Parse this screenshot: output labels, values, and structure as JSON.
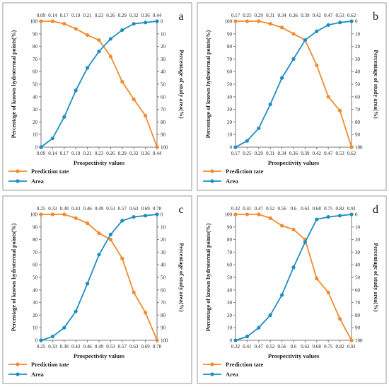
{
  "figure": {
    "series_colors": {
      "prediction": "#F28A2E",
      "area": "#1F8DC4"
    },
    "frame_color": "#9a9a9a"
  },
  "chart_data": [
    {
      "panel_label": "a",
      "type": "line",
      "xlabel": "Prospectivity values",
      "ylabel": "Percentage of known hydrotermal points(%)",
      "y2label": "Percentage of study area(%)",
      "x_ticks": [
        "0.09",
        "0.14",
        "0.17",
        "0.19",
        "0.21",
        "0.23",
        "0.26",
        "0.29",
        "0.32",
        "0.36",
        "0.44"
      ],
      "y_ticks": [
        0,
        10,
        20,
        30,
        40,
        50,
        60,
        70,
        80,
        90,
        100
      ],
      "y2_ticks": [
        100,
        90,
        80,
        70,
        60,
        50,
        40,
        30,
        20,
        10,
        0
      ],
      "ylim": [
        0,
        100
      ],
      "y2lim": [
        0,
        100
      ],
      "y2_reversed": true,
      "series": [
        {
          "name": "Prediction tate",
          "axis": "left",
          "values": [
            100,
            100,
            98,
            94,
            89,
            85,
            72,
            52,
            38,
            25,
            0
          ]
        },
        {
          "name": "Area",
          "axis": "right",
          "values": [
            100,
            93,
            76,
            55,
            37,
            24,
            14,
            7,
            2,
            1,
            0
          ]
        }
      ]
    },
    {
      "panel_label": "b",
      "type": "line",
      "xlabel": "Prospectivity values",
      "ylabel": "Percentage of known hydrotermal points(%)",
      "y2label": "Percentage of study area(%)",
      "x_ticks": [
        "0.17",
        "0.25",
        "0.29",
        "0.31",
        "0.34",
        "0.36",
        "0.39",
        "0.42",
        "0.47",
        "0.53",
        "0.62"
      ],
      "y_ticks": [
        0,
        10,
        20,
        30,
        40,
        50,
        60,
        70,
        80,
        90,
        100
      ],
      "y2_ticks": [
        100,
        90,
        80,
        70,
        60,
        50,
        40,
        30,
        20,
        10,
        0
      ],
      "ylim": [
        0,
        100
      ],
      "y2lim": [
        0,
        100
      ],
      "y2_reversed": true,
      "series": [
        {
          "name": "Prediction tate",
          "axis": "left",
          "values": [
            100,
            100,
            100,
            98,
            95,
            90,
            85,
            65,
            40,
            29,
            0
          ]
        },
        {
          "name": "Area",
          "axis": "right",
          "values": [
            100,
            95,
            85,
            66,
            45,
            30,
            15,
            8,
            3,
            1,
            0
          ]
        }
      ]
    },
    {
      "panel_label": "c",
      "type": "line",
      "xlabel": "Prospectivity values",
      "ylabel": "Percentage of known hydrotermal points(%)",
      "y2label": "Percentage of study area(%)",
      "x_ticks": [
        "0.25",
        "0.33",
        "0.38",
        "0.43",
        "0.46",
        "0.49",
        "0.53",
        "0.57",
        "0.63",
        "0.69",
        "0.78"
      ],
      "y_ticks": [
        0,
        10,
        20,
        30,
        40,
        50,
        60,
        70,
        80,
        90,
        100
      ],
      "y2_ticks": [
        100,
        90,
        80,
        70,
        60,
        50,
        40,
        30,
        20,
        10,
        0
      ],
      "ylim": [
        0,
        100
      ],
      "y2lim": [
        0,
        100
      ],
      "y2_reversed": true,
      "series": [
        {
          "name": "Prediction tate",
          "axis": "left",
          "values": [
            100,
            100,
            100,
            97,
            93,
            85,
            80,
            65,
            38,
            22,
            0
          ]
        },
        {
          "name": "Area",
          "axis": "right",
          "values": [
            100,
            97,
            90,
            77,
            55,
            32,
            16,
            5,
            2,
            1,
            0
          ]
        }
      ]
    },
    {
      "panel_label": "d",
      "type": "line",
      "xlabel": "Prospectivity values",
      "ylabel": "Percentage of known hydrotermal points(%)",
      "y2label": "Percentage of study area(%)",
      "x_ticks": [
        "0.32",
        "0.41",
        "0.47",
        "0.52",
        "0.56",
        "0.6",
        "0.63",
        "0.68",
        "0.75",
        "0.82",
        "0.91"
      ],
      "y_ticks": [
        0,
        10,
        20,
        30,
        40,
        50,
        60,
        70,
        80,
        90,
        100
      ],
      "y2_ticks": [
        100,
        90,
        80,
        70,
        60,
        50,
        40,
        30,
        20,
        10,
        0
      ],
      "ylim": [
        0,
        100
      ],
      "y2lim": [
        0,
        100
      ],
      "y2_reversed": true,
      "series": [
        {
          "name": "Prediction tate",
          "axis": "left",
          "values": [
            100,
            100,
            100,
            97,
            91,
            88,
            80,
            49,
            38,
            17,
            0
          ]
        },
        {
          "name": "Area",
          "axis": "right",
          "values": [
            100,
            97,
            90,
            80,
            64,
            42,
            22,
            4,
            2,
            1,
            0
          ]
        }
      ]
    }
  ]
}
